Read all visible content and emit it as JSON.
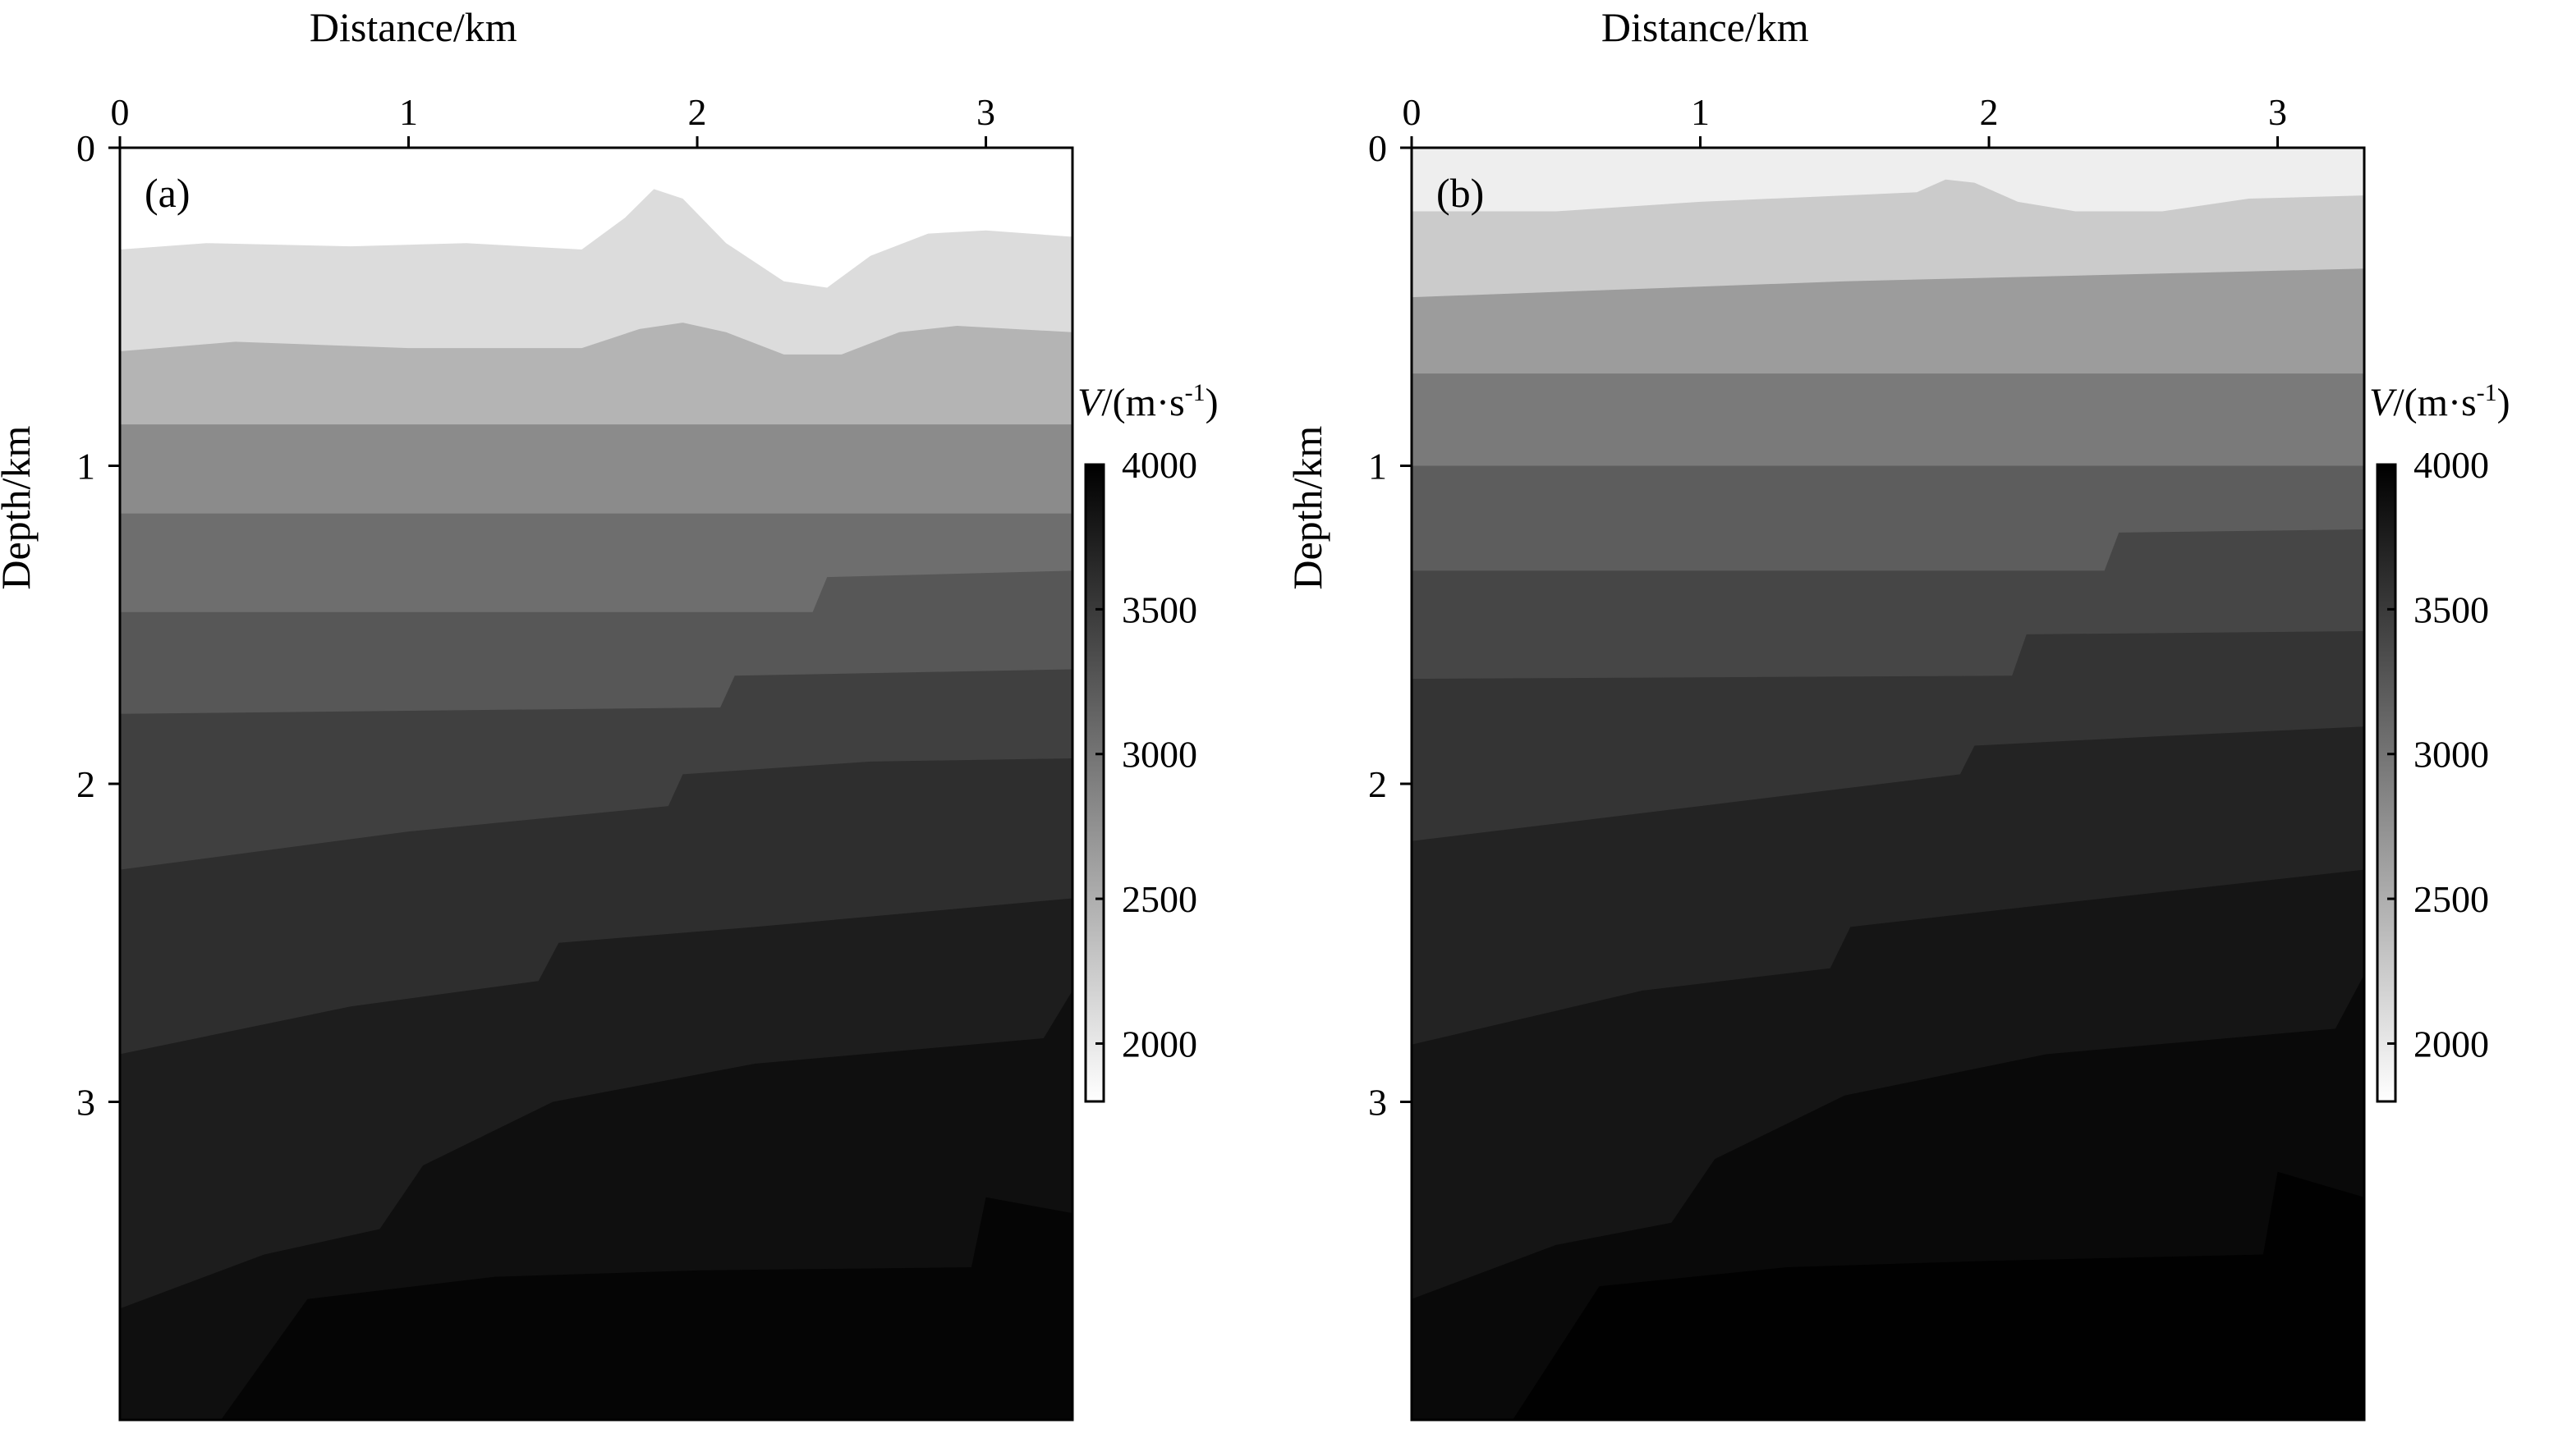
{
  "chart_data": [
    {
      "type": "heatmap",
      "panel_label": "(a)",
      "xlabel": "Distance/km",
      "ylabel": "Depth/km",
      "xlim": [
        0,
        3.3
      ],
      "ylim": [
        0,
        4.0
      ],
      "x_ticks": [
        0,
        1,
        2,
        3
      ],
      "y_ticks": [
        0,
        1,
        2,
        3
      ],
      "colorbar": {
        "label_var": "V",
        "label_unit": "/(m·s",
        "label_exp": "-1",
        "label_close": ")",
        "range": [
          1800,
          4000
        ],
        "ticks": [
          2000,
          2500,
          3000,
          3500,
          4000
        ]
      },
      "layers": [
        {
          "velocity": 2100,
          "boundary": [
            [
              0,
              0.32
            ],
            [
              0.3,
              0.3
            ],
            [
              0.8,
              0.31
            ],
            [
              1.2,
              0.3
            ],
            [
              1.6,
              0.32
            ],
            [
              1.75,
              0.22
            ],
            [
              1.85,
              0.13
            ],
            [
              1.95,
              0.16
            ],
            [
              2.1,
              0.3
            ],
            [
              2.3,
              0.42
            ],
            [
              2.45,
              0.44
            ],
            [
              2.6,
              0.34
            ],
            [
              2.8,
              0.27
            ],
            [
              3.0,
              0.26
            ],
            [
              3.3,
              0.28
            ]
          ]
        },
        {
          "velocity": 2450,
          "boundary": [
            [
              0,
              0.64
            ],
            [
              0.4,
              0.61
            ],
            [
              1.0,
              0.63
            ],
            [
              1.6,
              0.63
            ],
            [
              1.8,
              0.57
            ],
            [
              1.95,
              0.55
            ],
            [
              2.1,
              0.58
            ],
            [
              2.3,
              0.65
            ],
            [
              2.5,
              0.65
            ],
            [
              2.7,
              0.58
            ],
            [
              2.9,
              0.56
            ],
            [
              3.3,
              0.58
            ]
          ]
        },
        {
          "velocity": 2800,
          "boundary": [
            [
              0,
              0.87
            ],
            [
              3.3,
              0.87
            ]
          ]
        },
        {
          "velocity": 3050,
          "boundary": [
            [
              0,
              1.15
            ],
            [
              3.3,
              1.15
            ]
          ]
        },
        {
          "velocity": 3250,
          "boundary": [
            [
              0,
              1.46
            ],
            [
              2.4,
              1.46
            ],
            [
              2.45,
              1.35
            ],
            [
              3.3,
              1.33
            ]
          ]
        },
        {
          "velocity": 3450,
          "boundary": [
            [
              0,
              1.78
            ],
            [
              2.08,
              1.76
            ],
            [
              2.13,
              1.66
            ],
            [
              3.3,
              1.64
            ]
          ]
        },
        {
          "velocity": 3600,
          "boundary": [
            [
              0,
              2.27
            ],
            [
              1.0,
              2.15
            ],
            [
              1.9,
              2.07
            ],
            [
              1.95,
              1.97
            ],
            [
              2.6,
              1.93
            ],
            [
              3.3,
              1.92
            ]
          ]
        },
        {
          "velocity": 3750,
          "boundary": [
            [
              0,
              2.85
            ],
            [
              0.8,
              2.7
            ],
            [
              1.45,
              2.62
            ],
            [
              1.52,
              2.5
            ],
            [
              2.2,
              2.45
            ],
            [
              3.3,
              2.36
            ]
          ]
        },
        {
          "velocity": 3870,
          "boundary": [
            [
              0,
              3.65
            ],
            [
              0.5,
              3.48
            ],
            [
              0.9,
              3.4
            ],
            [
              1.05,
              3.2
            ],
            [
              1.5,
              3.0
            ],
            [
              2.2,
              2.88
            ],
            [
              3.2,
              2.8
            ],
            [
              3.3,
              2.65
            ]
          ]
        },
        {
          "velocity": 3960,
          "boundary": [
            [
              0.35,
              4.0
            ],
            [
              0.65,
              3.62
            ],
            [
              1.3,
              3.55
            ],
            [
              2.0,
              3.53
            ],
            [
              2.95,
              3.52
            ],
            [
              3.0,
              3.3
            ],
            [
              3.3,
              3.35
            ]
          ]
        }
      ],
      "background_velocity": 1800
    },
    {
      "type": "heatmap",
      "panel_label": "(b)",
      "xlabel": "Distance/km",
      "ylabel": "Depth/km",
      "xlim": [
        0,
        3.3
      ],
      "ylim": [
        0,
        4.0
      ],
      "x_ticks": [
        0,
        1,
        2,
        3
      ],
      "y_ticks": [
        0,
        1,
        2,
        3
      ],
      "colorbar": {
        "label_var": "V",
        "label_unit": "/(m·s",
        "label_exp": "-1",
        "label_close": ")",
        "range": [
          1800,
          4000
        ],
        "ticks": [
          2000,
          2500,
          3000,
          3500,
          4000
        ]
      },
      "layers": [
        {
          "velocity": 2250,
          "boundary": [
            [
              0,
              0.2
            ],
            [
              0.5,
              0.2
            ],
            [
              1.0,
              0.17
            ],
            [
              1.5,
              0.15
            ],
            [
              1.75,
              0.14
            ],
            [
              1.85,
              0.1
            ],
            [
              1.95,
              0.11
            ],
            [
              2.1,
              0.17
            ],
            [
              2.3,
              0.2
            ],
            [
              2.6,
              0.2
            ],
            [
              2.9,
              0.16
            ],
            [
              3.3,
              0.15
            ]
          ]
        },
        {
          "velocity": 2650,
          "boundary": [
            [
              0,
              0.47
            ],
            [
              1.5,
              0.42
            ],
            [
              3.3,
              0.38
            ]
          ]
        },
        {
          "velocity": 2950,
          "boundary": [
            [
              0,
              0.71
            ],
            [
              3.3,
              0.71
            ]
          ]
        },
        {
          "velocity": 3200,
          "boundary": [
            [
              0,
              1.0
            ],
            [
              3.3,
              1.0
            ]
          ]
        },
        {
          "velocity": 3400,
          "boundary": [
            [
              0,
              1.33
            ],
            [
              2.4,
              1.33
            ],
            [
              2.45,
              1.21
            ],
            [
              3.3,
              1.2
            ]
          ]
        },
        {
          "velocity": 3550,
          "boundary": [
            [
              0,
              1.67
            ],
            [
              2.08,
              1.66
            ],
            [
              2.13,
              1.53
            ],
            [
              3.3,
              1.52
            ]
          ]
        },
        {
          "velocity": 3700,
          "boundary": [
            [
              0,
              2.18
            ],
            [
              1.0,
              2.07
            ],
            [
              1.9,
              1.97
            ],
            [
              1.95,
              1.88
            ],
            [
              2.6,
              1.85
            ],
            [
              3.3,
              1.82
            ]
          ]
        },
        {
          "velocity": 3820,
          "boundary": [
            [
              0,
              2.82
            ],
            [
              0.8,
              2.65
            ],
            [
              1.45,
              2.58
            ],
            [
              1.52,
              2.45
            ],
            [
              2.2,
              2.38
            ],
            [
              3.3,
              2.27
            ]
          ]
        },
        {
          "velocity": 3920,
          "boundary": [
            [
              0,
              3.62
            ],
            [
              0.5,
              3.45
            ],
            [
              0.9,
              3.38
            ],
            [
              1.05,
              3.18
            ],
            [
              1.5,
              2.98
            ],
            [
              2.2,
              2.85
            ],
            [
              3.2,
              2.77
            ],
            [
              3.3,
              2.6
            ]
          ]
        },
        {
          "velocity": 3990,
          "boundary": [
            [
              0.35,
              4.0
            ],
            [
              0.65,
              3.58
            ],
            [
              1.3,
              3.52
            ],
            [
              2.0,
              3.5
            ],
            [
              2.95,
              3.48
            ],
            [
              3.0,
              3.22
            ],
            [
              3.3,
              3.3
            ]
          ]
        }
      ],
      "background_velocity": 1950
    }
  ]
}
